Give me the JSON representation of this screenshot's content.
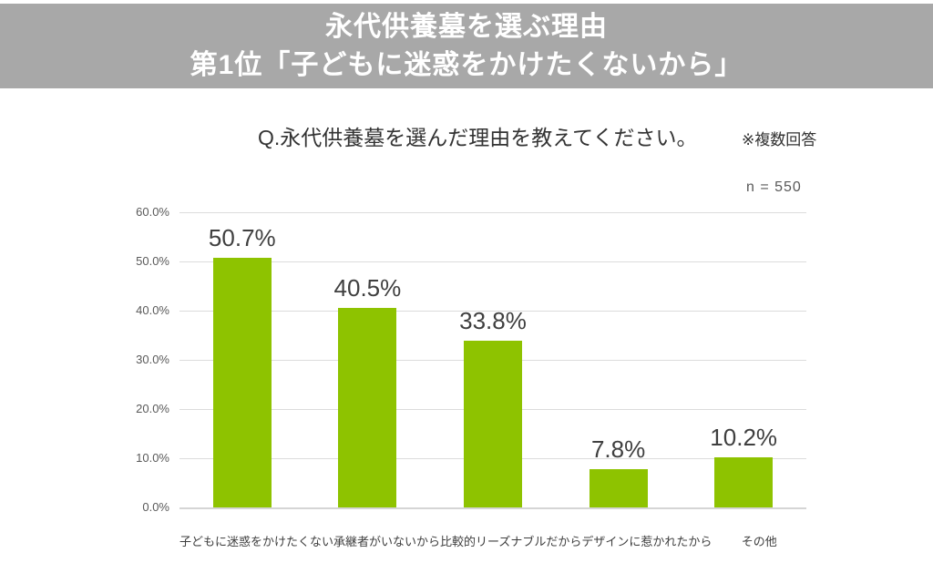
{
  "header": {
    "line1": "永代供養墓を選ぶ理由",
    "line2": "第1位「子どもに迷惑をかけたくないから」"
  },
  "question": {
    "text": "Q.永代供養墓を選んだ理由を教えてください。",
    "note": "※複数回答"
  },
  "sample_size": "n = 550",
  "colors": {
    "banner_bg": "#a8a8a8",
    "header_text": "#ffffff",
    "bar": "#8ec300",
    "gridline": "#dcdcdc",
    "baseline": "#d5d5d5",
    "value_label": "#3f3f3f",
    "axis_text": "#595959"
  },
  "chart_data": {
    "type": "bar",
    "title": "Q.永代供養墓を選んだ理由を教えてください。",
    "subtitle_note": "※複数回答",
    "n": 550,
    "categories": [
      "子どもに迷惑をかけたくない",
      "承継者がいないから",
      "比較的リーズナブルだから",
      "デザインに惹かれたから",
      "その他"
    ],
    "values": [
      50.7,
      40.5,
      33.8,
      7.8,
      10.2
    ],
    "value_labels": [
      "50.7%",
      "40.5%",
      "33.8%",
      "7.8%",
      "10.2%"
    ],
    "xlabel": "",
    "ylabel": "",
    "ylim": [
      0,
      60
    ],
    "ytick_labels_desc": [
      "60.0%",
      "50.0%",
      "40.0%",
      "30.0%",
      "20.0%",
      "10.0%",
      "0.0%"
    ],
    "grid": true,
    "legend": false,
    "bar_color": "#8ec300"
  }
}
